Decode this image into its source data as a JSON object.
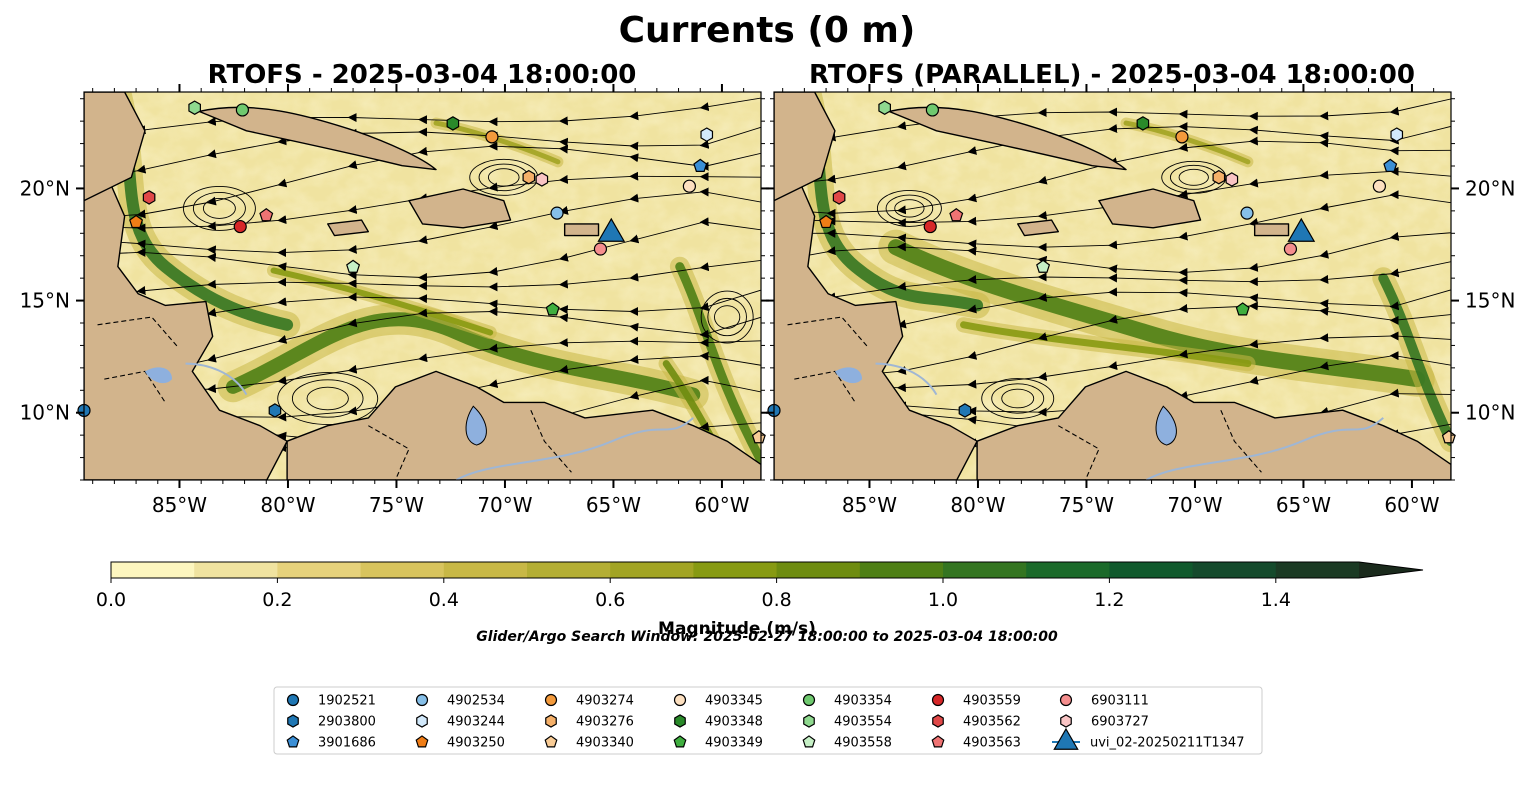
{
  "suptitle": "Currents (0 m)",
  "colorbar": {
    "label": "Magnitude (m/s)",
    "ticks": [
      "0.0",
      "0.2",
      "0.4",
      "0.6",
      "0.8",
      "1.0",
      "1.2",
      "1.4"
    ],
    "range": [
      0,
      1.5
    ],
    "step": 0.1,
    "extend": "max",
    "colors": [
      "#fdf6bf",
      "#f0e3a0",
      "#e6d27c",
      "#d8c45e",
      "#c8b846",
      "#b4ae34",
      "#a2a424",
      "#879a12",
      "#6e8c10",
      "#4e7f15",
      "#347521",
      "#1b6a2a",
      "#10592c",
      "#154a2c",
      "#1b3a24"
    ],
    "extend_color": "#1a2a1c"
  },
  "search_window": "Glider/Argo Search Window: 2025-02-27 18:00:00 to 2025-03-04 18:00:00",
  "colors": {
    "land": "#d2b48c",
    "lake": "#8eb0de",
    "river": "#9fb6d4"
  },
  "chart_data": [
    {
      "type": "map",
      "title": "RTOFS - 2025-03-04 18:00:00",
      "variable": "Surface current magnitude (m/s) with streamlines",
      "extent": {
        "lon": [
          -89.4,
          -58.2
        ],
        "lat": [
          7.0,
          24.3
        ]
      },
      "xticks": [
        -85,
        -80,
        -75,
        -70,
        -65,
        -60
      ],
      "xtick_labels": [
        "85°W",
        "80°W",
        "75°W",
        "70°W",
        "65°W",
        "60°W"
      ],
      "yticks": [
        10,
        15,
        20
      ],
      "ytick_labels": [
        "10°N",
        "15°N",
        "20°N"
      ],
      "ytick_side": "left"
    },
    {
      "type": "map",
      "title": "RTOFS (PARALLEL) - 2025-03-04 18:00:00",
      "variable": "Surface current magnitude (m/s) with streamlines",
      "extent": {
        "lon": [
          -89.4,
          -58.2
        ],
        "lat": [
          7.0,
          24.3
        ]
      },
      "xticks": [
        -85,
        -80,
        -75,
        -70,
        -65,
        -60
      ],
      "xtick_labels": [
        "85°W",
        "80°W",
        "75°W",
        "70°W",
        "65°W",
        "60°W"
      ],
      "yticks": [
        10,
        15,
        20
      ],
      "ytick_labels": [
        "10°N",
        "15°N",
        "20°N"
      ],
      "ytick_side": "right"
    }
  ],
  "platforms": [
    {
      "id": "1902521",
      "marker": "circle",
      "color": "#1f77b4",
      "lon": -89.4,
      "lat": 10.1
    },
    {
      "id": "2903800",
      "marker": "hexagon",
      "color": "#1f77b4",
      "lon": -80.6,
      "lat": 10.1
    },
    {
      "id": "3901686",
      "marker": "pentagon",
      "color": "#3b8fd6",
      "lon": -61.0,
      "lat": 21.0
    },
    {
      "id": "4902534",
      "marker": "circle",
      "color": "#86bfe8",
      "lon": -67.6,
      "lat": 18.9
    },
    {
      "id": "4903244",
      "marker": "hexagon",
      "color": "#d2e9fb",
      "lon": -60.7,
      "lat": 22.4
    },
    {
      "id": "4903250",
      "marker": "pentagon",
      "color": "#f07d16",
      "lon": -87.0,
      "lat": 18.5
    },
    {
      "id": "4903274",
      "marker": "circle",
      "color": "#f39a3c",
      "lon": -70.6,
      "lat": 22.3
    },
    {
      "id": "4903276",
      "marker": "hexagon",
      "color": "#f5b069",
      "lon": -68.9,
      "lat": 20.5
    },
    {
      "id": "4903340",
      "marker": "pentagon",
      "color": "#f9cc96",
      "lon": -58.3,
      "lat": 8.9
    },
    {
      "id": "4903345",
      "marker": "circle",
      "color": "#fde0c0",
      "lon": -61.5,
      "lat": 20.1
    },
    {
      "id": "4903348",
      "marker": "hexagon",
      "color": "#2a8a2a",
      "lon": -72.4,
      "lat": 22.9
    },
    {
      "id": "4903349",
      "marker": "pentagon",
      "color": "#3fae3f",
      "lon": -67.8,
      "lat": 14.6
    },
    {
      "id": "4903354",
      "marker": "circle",
      "color": "#6fc96f",
      "lon": -82.1,
      "lat": 23.5
    },
    {
      "id": "4903554",
      "marker": "hexagon",
      "color": "#8fd98f",
      "lon": -84.3,
      "lat": 23.6
    },
    {
      "id": "4903558",
      "marker": "pentagon",
      "color": "#c6f0c6",
      "lon": -77.0,
      "lat": 16.5
    },
    {
      "id": "4903559",
      "marker": "circle",
      "color": "#d62728",
      "lon": -82.2,
      "lat": 18.3
    },
    {
      "id": "4903562",
      "marker": "hexagon",
      "color": "#e04848",
      "lon": -86.4,
      "lat": 19.6
    },
    {
      "id": "4903563",
      "marker": "pentagon",
      "color": "#ef7373",
      "lon": -81.0,
      "lat": 18.8
    },
    {
      "id": "6903111",
      "marker": "circle",
      "color": "#f58e8e",
      "lon": -65.6,
      "lat": 17.3
    },
    {
      "id": "6903727",
      "marker": "hexagon",
      "color": "#f9c4c4",
      "lon": -68.3,
      "lat": 20.4
    },
    {
      "id": "uvi_02-20250211T1347",
      "marker": "triangle",
      "color": "#1f77b4",
      "lon": -65.1,
      "lat": 18.1
    }
  ]
}
